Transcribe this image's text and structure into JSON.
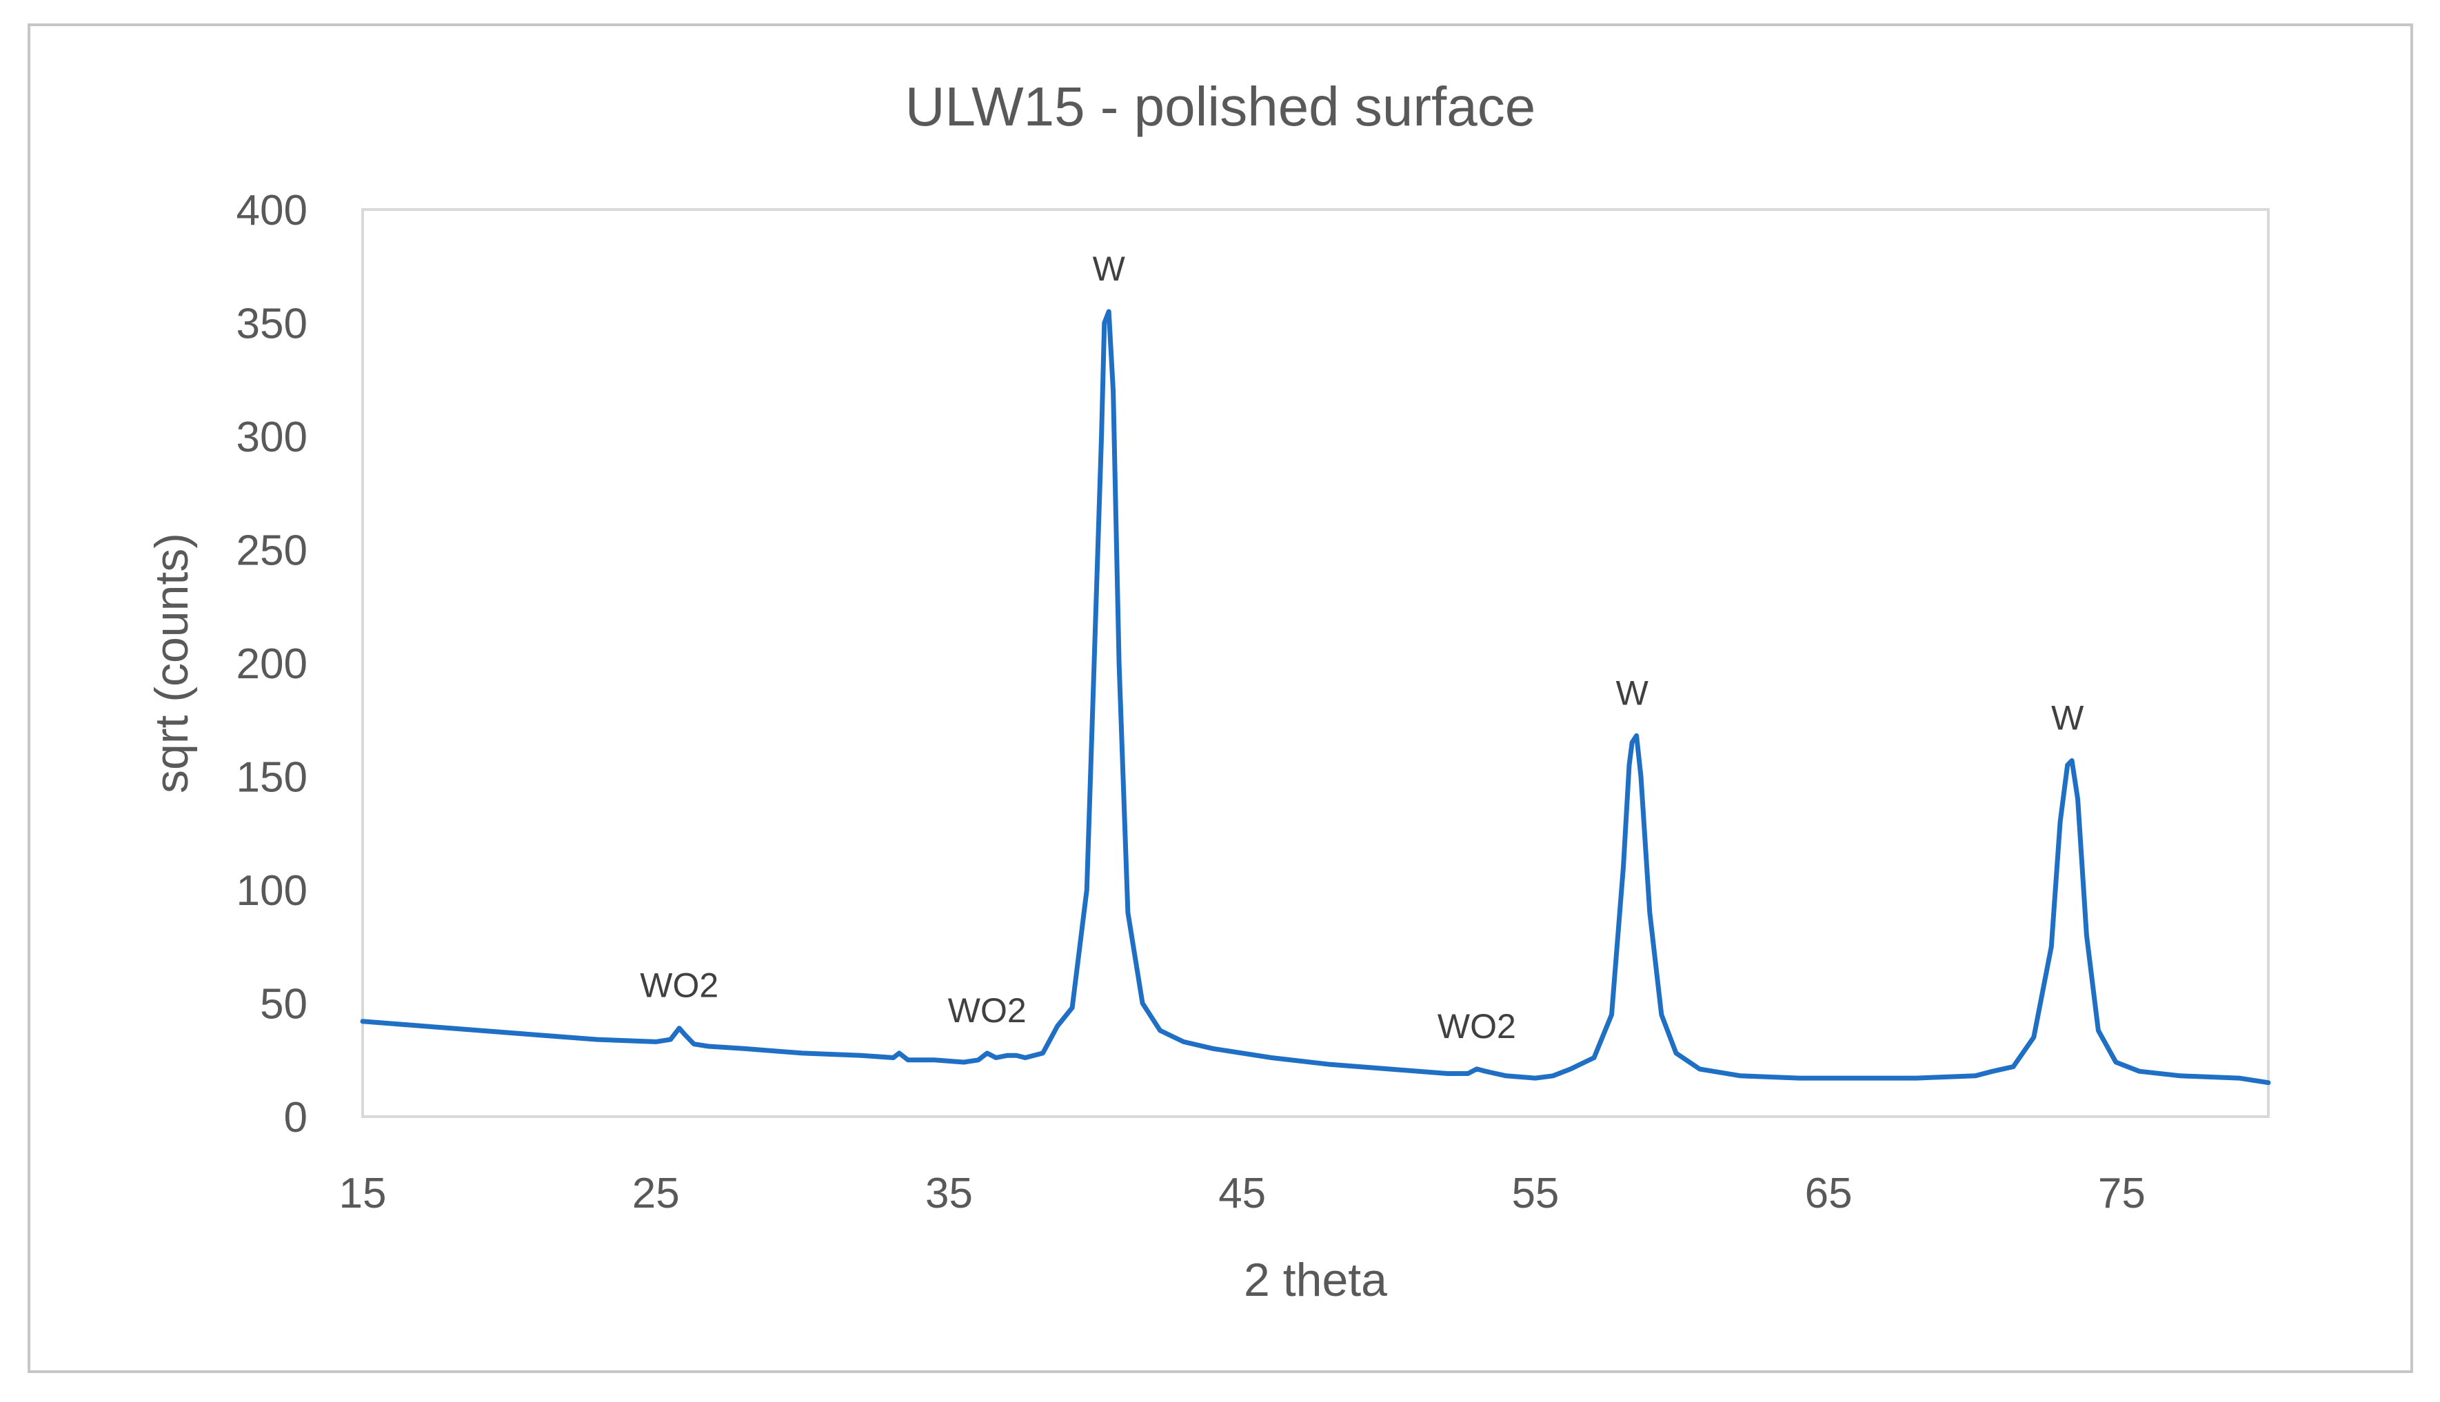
{
  "chart_data": {
    "type": "line",
    "title": "ULW15 - polished surface",
    "xlabel": "2 theta",
    "ylabel": "sqrt (counts)",
    "xlim": [
      15,
      80
    ],
    "ylim": [
      0,
      400
    ],
    "xticks": [
      15,
      25,
      35,
      45,
      55,
      65,
      75
    ],
    "yticks": [
      0,
      50,
      100,
      150,
      200,
      250,
      300,
      350,
      400
    ],
    "grid": false,
    "legend": "none",
    "line_color": "#1f6fc5",
    "series": [
      {
        "x": [
          15,
          17,
          19,
          21,
          23,
          25,
          25.5,
          25.8,
          26.0,
          26.3,
          26.8,
          28,
          30,
          32,
          33.1,
          33.3,
          33.6,
          34.5,
          35.5,
          36.0,
          36.3,
          36.6,
          37.0,
          37.3,
          37.6,
          38.2,
          38.7,
          39.2,
          39.7,
          40.0,
          40.2,
          40.3,
          40.45,
          40.6,
          40.8,
          41.1,
          41.6,
          42.2,
          43,
          44,
          46,
          48,
          50,
          52,
          52.7,
          53.0,
          53.3,
          54,
          55,
          55.6,
          56.2,
          57.0,
          57.6,
          58.0,
          58.2,
          58.3,
          58.45,
          58.6,
          58.9,
          59.3,
          59.8,
          60.6,
          62,
          64,
          66,
          68,
          70,
          70.6,
          71.3,
          72.0,
          72.6,
          72.9,
          73.15,
          73.3,
          73.5,
          73.8,
          74.2,
          74.8,
          75.6,
          77,
          79,
          80
        ],
        "y": [
          42,
          40,
          38,
          36,
          34,
          33,
          34,
          39,
          36,
          32,
          31,
          30,
          28,
          27,
          26,
          28,
          25,
          25,
          24,
          25,
          28,
          26,
          27,
          27,
          26,
          28,
          40,
          48,
          100,
          220,
          300,
          350,
          355,
          320,
          200,
          90,
          50,
          38,
          33,
          30,
          26,
          23,
          21,
          19,
          19,
          21,
          20,
          18,
          17,
          18,
          21,
          26,
          45,
          110,
          155,
          165,
          168,
          150,
          90,
          45,
          28,
          21,
          18,
          17,
          17,
          17,
          18,
          20,
          22,
          35,
          75,
          130,
          155,
          157,
          140,
          80,
          38,
          24,
          20,
          18,
          17,
          15
        ]
      }
    ],
    "annotations": [
      {
        "text": "WO2",
        "x": 25.8,
        "y": 39
      },
      {
        "text": "WO2",
        "x": 36.3,
        "y": 28
      },
      {
        "text": "W",
        "x": 40.45,
        "y": 355
      },
      {
        "text": "WO2",
        "x": 53.0,
        "y": 21
      },
      {
        "text": "W",
        "x": 58.3,
        "y": 168
      },
      {
        "text": "W",
        "x": 73.15,
        "y": 157
      }
    ]
  }
}
